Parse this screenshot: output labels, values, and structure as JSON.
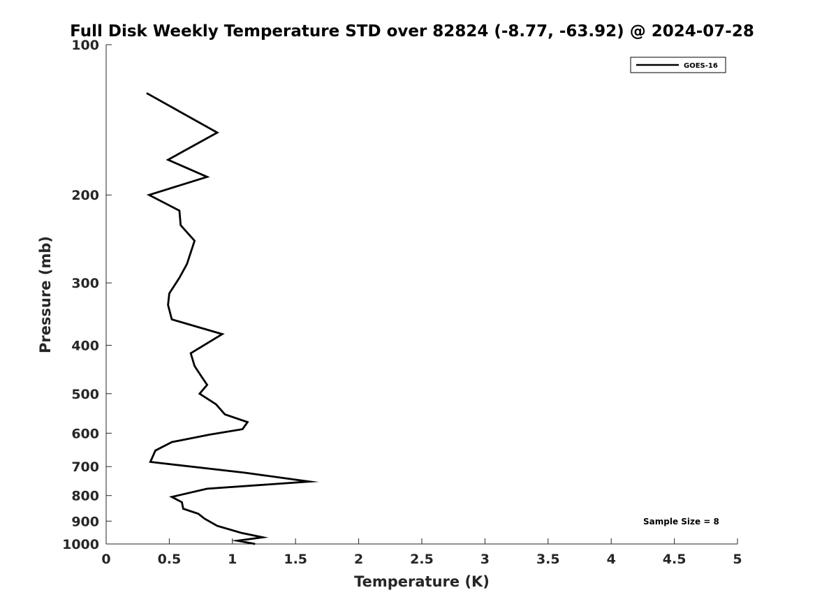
{
  "chart_data": {
    "type": "line",
    "title": "Full Disk Weekly Temperature STD over 82824 (-8.77, -63.92) @ 2024-07-28",
    "xlabel": "Temperature (K)",
    "ylabel": "Pressure (mb)",
    "xlim": [
      0,
      5
    ],
    "ylim": [
      100,
      1000
    ],
    "y_scale": "log",
    "y_reversed": true,
    "grid": false,
    "legend_position": "top-right",
    "x_ticks": [
      "0",
      "0.5",
      "1",
      "1.5",
      "2",
      "2.5",
      "3",
      "3.5",
      "4",
      "4.5",
      "5"
    ],
    "y_ticks": [
      "100",
      "200",
      "300",
      "400",
      "500",
      "600",
      "700",
      "800",
      "900",
      "1000"
    ],
    "series": [
      {
        "name": "GOES-16",
        "color": "#000000",
        "points": [
          [
            0.32,
            125
          ],
          [
            0.88,
            150
          ],
          [
            0.49,
            170
          ],
          [
            0.8,
            184
          ],
          [
            0.34,
            200
          ],
          [
            0.58,
            215
          ],
          [
            0.59,
            230
          ],
          [
            0.7,
            247
          ],
          [
            0.64,
            275
          ],
          [
            0.58,
            293
          ],
          [
            0.5,
            315
          ],
          [
            0.49,
            332
          ],
          [
            0.52,
            355
          ],
          [
            0.92,
            380
          ],
          [
            0.67,
            415
          ],
          [
            0.7,
            440
          ],
          [
            0.75,
            460
          ],
          [
            0.8,
            480
          ],
          [
            0.74,
            500
          ],
          [
            0.87,
            525
          ],
          [
            0.94,
            550
          ],
          [
            1.12,
            570
          ],
          [
            1.08,
            589
          ],
          [
            0.82,
            604
          ],
          [
            0.52,
            625
          ],
          [
            0.39,
            650
          ],
          [
            0.35,
            685
          ],
          [
            1.1,
            720
          ],
          [
            1.61,
            750
          ],
          [
            0.8,
            775
          ],
          [
            0.52,
            805
          ],
          [
            0.6,
            825
          ],
          [
            0.61,
            850
          ],
          [
            0.73,
            870
          ],
          [
            0.78,
            890
          ],
          [
            0.88,
            920
          ],
          [
            1.07,
            950
          ],
          [
            1.24,
            970
          ],
          [
            1.04,
            985
          ],
          [
            1.18,
            1000
          ]
        ]
      }
    ],
    "annotation": "Sample Size = 8"
  }
}
